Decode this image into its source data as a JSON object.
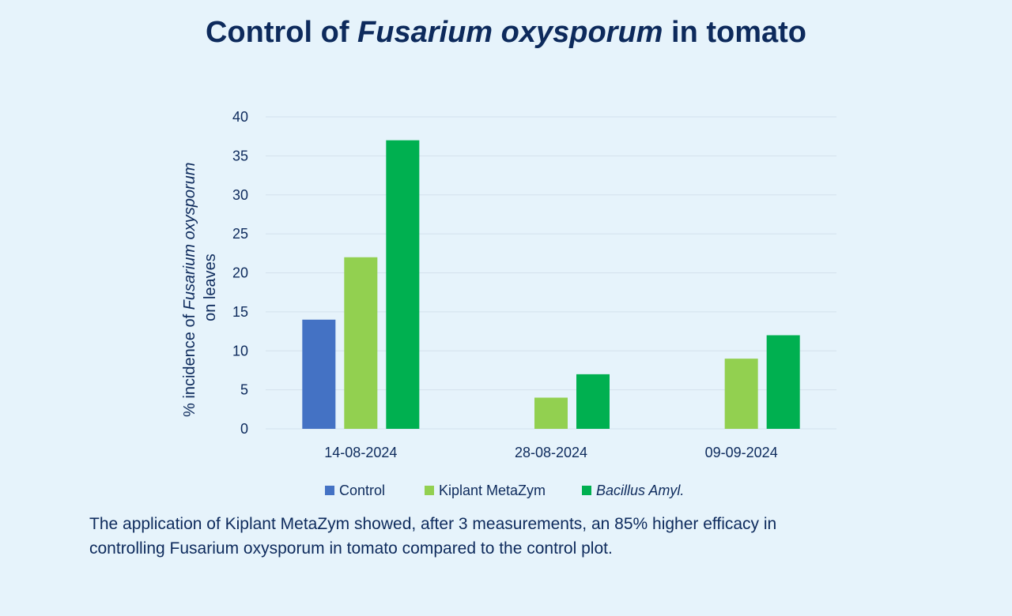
{
  "title": {
    "prefix": "Control of ",
    "italic": "Fusarium oxysporum",
    "suffix": " in tomato"
  },
  "caption": {
    "line1": "The application of Kiplant MetaZym showed, after 3 measurements, an 85% higher efficacy in",
    "line2": "controlling Fusarium oxysporum in tomato compared to the control plot."
  },
  "chart_data": {
    "type": "bar",
    "title": "Control of Fusarium oxysporum in tomato",
    "categories": [
      "14-08-2024",
      "28-08-2024",
      "09-09-2024"
    ],
    "series": [
      {
        "name": "Control",
        "values": [
          14,
          null,
          null
        ],
        "color": "#4472c4",
        "italic": false
      },
      {
        "name": "Kiplant MetaZym",
        "values": [
          22,
          4,
          9
        ],
        "color": "#92d050",
        "italic": false
      },
      {
        "name": "Bacillus Amyl.",
        "values": [
          37,
          7,
          12
        ],
        "color": "#00b050",
        "italic": true
      }
    ],
    "ylabel": {
      "line1_prefix": "% incidence of ",
      "line1_italic": "Fusarium oxysporum",
      "line2": "on leaves"
    },
    "xlabel": "",
    "ylim": [
      0,
      40
    ],
    "yticks": [
      "0",
      "5",
      "10",
      "15",
      "20",
      "25",
      "30",
      "35",
      "40"
    ],
    "grid": true,
    "legend_position": "bottom"
  }
}
